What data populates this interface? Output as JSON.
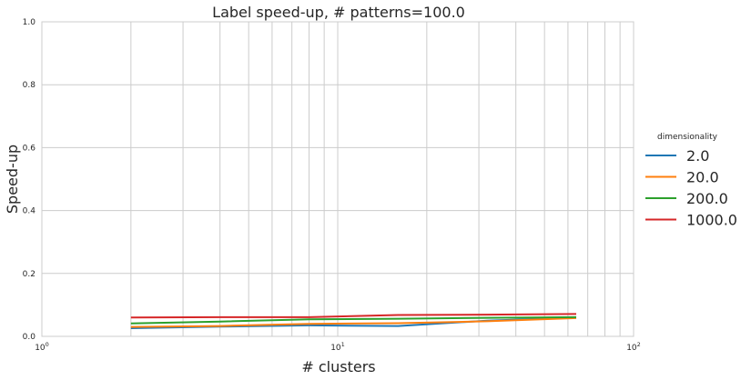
{
  "chart_data": {
    "type": "line",
    "title": "Label speed-up, # patterns=100.0",
    "xlabel": "# clusters",
    "ylabel": "Speed-up",
    "xscale": "log",
    "xlim": [
      1,
      100
    ],
    "ylim": [
      0,
      1
    ],
    "x_ticks": [
      {
        "base": "10",
        "exp": "0"
      },
      {
        "base": "10",
        "exp": "1"
      },
      {
        "base": "10",
        "exp": "2"
      }
    ],
    "y_ticks": [
      "0.0",
      "0.2",
      "0.4",
      "0.6",
      "0.8",
      "1.0"
    ],
    "grid": true,
    "legend": {
      "title": "dimensionality",
      "placement": "right"
    },
    "x": [
      2,
      4,
      8,
      16,
      32,
      64
    ],
    "series": [
      {
        "name": "2.0",
        "color": "#1f77b4",
        "values": [
          0.026,
          0.031,
          0.035,
          0.033,
          0.05,
          0.06
        ]
      },
      {
        "name": "20.0",
        "color": "#ff7f0e",
        "values": [
          0.03,
          0.033,
          0.04,
          0.042,
          0.048,
          0.058
        ]
      },
      {
        "name": "200.0",
        "color": "#2ca02c",
        "values": [
          0.041,
          0.047,
          0.054,
          0.056,
          0.059,
          0.061
        ]
      },
      {
        "name": "1000.0",
        "color": "#d62728",
        "values": [
          0.06,
          0.061,
          0.061,
          0.068,
          0.069,
          0.071
        ]
      }
    ]
  }
}
